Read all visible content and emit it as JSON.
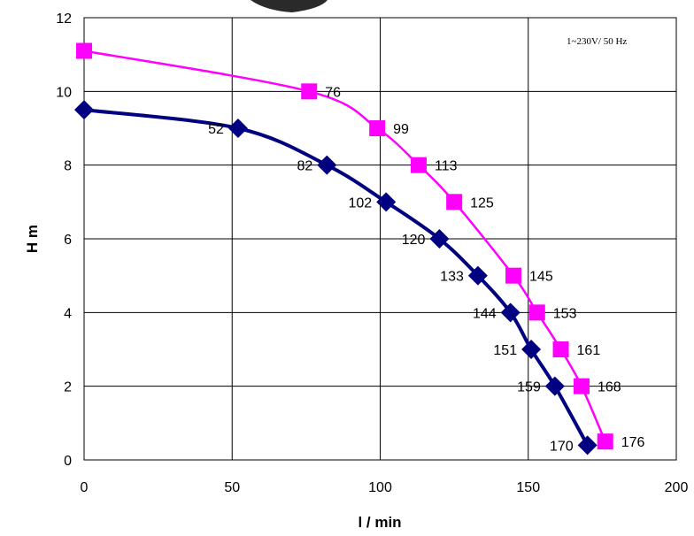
{
  "chart_data": {
    "type": "line",
    "title": "",
    "xlabel": "l / min",
    "ylabel": "H m",
    "xlim": [
      0,
      200
    ],
    "ylim": [
      0,
      12
    ],
    "x_ticks": [
      "0",
      "50",
      "100",
      "150",
      "200"
    ],
    "y_ticks": [
      "0",
      "2",
      "4",
      "6",
      "8",
      "10",
      "12"
    ],
    "grid": true,
    "annotation": "1~230V/ 50 Hz",
    "series": [
      {
        "color": "#ff00ff",
        "marker": "square",
        "points": [
          {
            "x": 0,
            "y": 11.1,
            "label": ""
          },
          {
            "x": 76,
            "y": 10,
            "label": "76"
          },
          {
            "x": 99,
            "y": 9,
            "label": "99"
          },
          {
            "x": 113,
            "y": 8,
            "label": "113"
          },
          {
            "x": 125,
            "y": 7,
            "label": "125"
          },
          {
            "x": 145,
            "y": 5,
            "label": "145"
          },
          {
            "x": 153,
            "y": 4,
            "label": "153"
          },
          {
            "x": 161,
            "y": 3,
            "label": "161"
          },
          {
            "x": 168,
            "y": 2,
            "label": "168"
          },
          {
            "x": 176,
            "y": 0.5,
            "label": "176"
          }
        ]
      },
      {
        "color": "#000080",
        "marker": "diamond",
        "points": [
          {
            "x": 0,
            "y": 9.5,
            "label": ""
          },
          {
            "x": 52,
            "y": 9,
            "label": "52"
          },
          {
            "x": 82,
            "y": 8,
            "label": "82"
          },
          {
            "x": 102,
            "y": 7,
            "label": "102"
          },
          {
            "x": 120,
            "y": 6,
            "label": "120"
          },
          {
            "x": 133,
            "y": 5,
            "label": "133"
          },
          {
            "x": 144,
            "y": 4,
            "label": "144"
          },
          {
            "x": 151,
            "y": 3,
            "label": "151"
          },
          {
            "x": 159,
            "y": 2,
            "label": "159"
          },
          {
            "x": 170,
            "y": 0.4,
            "label": "170"
          }
        ]
      }
    ]
  }
}
